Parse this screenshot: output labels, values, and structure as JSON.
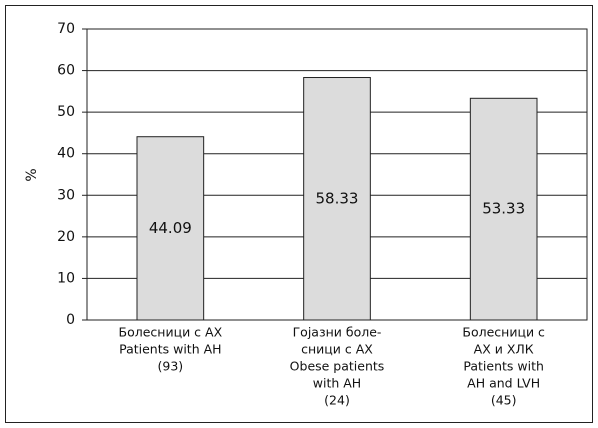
{
  "chart_data": {
    "type": "bar",
    "y_label": "%",
    "categories": [
      [
        "Болесници с АХ",
        "Patients with AH",
        "(93)"
      ],
      [
        "Гојазни боле-",
        "сници с АХ",
        "Obese patients",
        "with AH",
        "(24)"
      ],
      [
        "Болесници с",
        "АХ и ХЛК",
        "Patients with",
        "AH and LVH",
        "(45)"
      ]
    ],
    "values": [
      44.09,
      58.33,
      53.33
    ],
    "color": "#dcdcdc",
    "ylim": [
      0,
      70
    ],
    "yticks": [
      0,
      10,
      20,
      30,
      40,
      50,
      60,
      70
    ],
    "grid": true
  }
}
